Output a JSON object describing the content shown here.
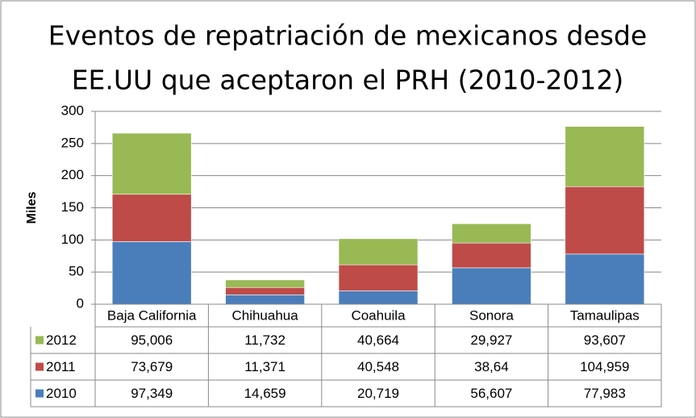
{
  "chart_data": {
    "type": "bar",
    "stacked": true,
    "title": [
      "Eventos de repatriación de mexicanos desde",
      "EE.UU que aceptaron el PRH (2010-2012)"
    ],
    "ylabel": "Miles",
    "categories": [
      "Baja California",
      "Chihuahua",
      "Coahuila",
      "Sonora",
      "Tamaulipas"
    ],
    "series": [
      {
        "name": "2010",
        "color": "#4a7ebb",
        "values": [
          97.349,
          14.659,
          20.719,
          56.607,
          77.983
        ],
        "value_labels": [
          "97,349",
          "14,659",
          "20,719",
          "56,607",
          "77,983"
        ]
      },
      {
        "name": "2011",
        "color": "#be4b48",
        "values": [
          73.679,
          11.371,
          40.548,
          38.64,
          104.959
        ],
        "value_labels": [
          "73,679",
          "11,371",
          "40,548",
          "38,64",
          "104,959"
        ]
      },
      {
        "name": "2012",
        "color": "#98b954",
        "values": [
          95.006,
          11.732,
          40.664,
          29.927,
          93.607
        ],
        "value_labels": [
          "95,006",
          "11,732",
          "40,664",
          "29,927",
          "93,607"
        ]
      }
    ],
    "ylim": [
      0,
      300
    ],
    "yticks": [
      0,
      50,
      100,
      150,
      200,
      250,
      300
    ],
    "grid": true
  }
}
